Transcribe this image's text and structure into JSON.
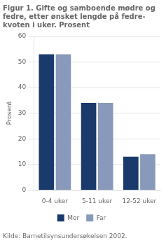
{
  "chart_data": {
    "type": "bar",
    "title": "Figur 1. Gifte og samboende mødre og\nfedre, etter ønsket lengde på fedre-\nkvoten i uker. Prosent",
    "ylabel": "Prosent",
    "categories": [
      "0-4 uker",
      "5-11 uker",
      "12-52 uker"
    ],
    "series": [
      {
        "name": "Mor",
        "color": "#1a3a6b",
        "values": [
          53,
          34,
          13
        ]
      },
      {
        "name": "Far",
        "color": "#8899bb",
        "values": [
          53,
          34,
          14
        ]
      }
    ],
    "ylim": [
      0,
      60
    ],
    "yticks": [
      0,
      10,
      20,
      30,
      40,
      50,
      60
    ],
    "grid": true,
    "legend": "bottom",
    "source": "Kilde: Barnetilsynsundersøkelsen 2002."
  }
}
